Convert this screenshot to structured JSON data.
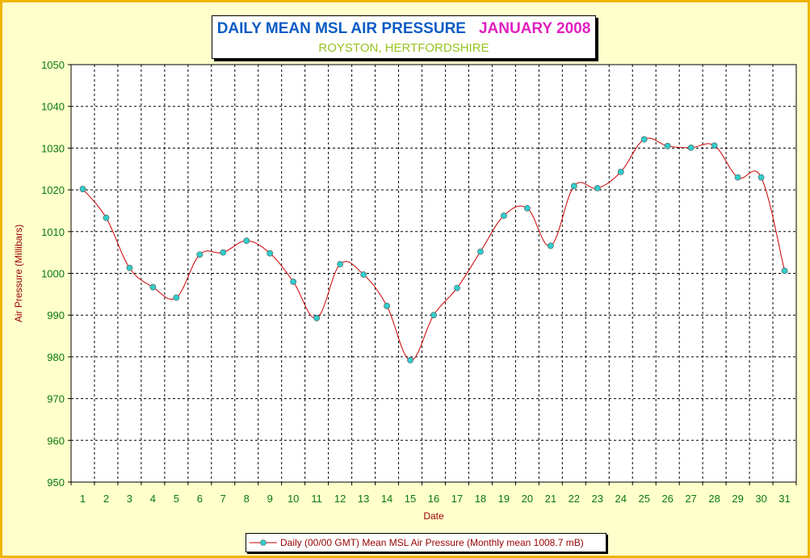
{
  "title": {
    "main": "DAILY MEAN MSL AIR PRESSURE",
    "month": "JANUARY 2008",
    "location": "ROYSTON, HERTFORDSHIRE"
  },
  "colors": {
    "background": "#ffffcc",
    "border": "#f0b400",
    "line": "#cc0000",
    "marker": "#33cccc",
    "tick_text": "#0a7a0a",
    "axis_title": "#990000"
  },
  "chart_data": {
    "type": "line",
    "title": "DAILY MEAN MSL AIR PRESSURE  JANUARY 2008",
    "subtitle": "ROYSTON, HERTFORDSHIRE",
    "xlabel": "Date",
    "ylabel": "Air Pressure (Millibars)",
    "ylim": [
      950,
      1050
    ],
    "yticks": [
      950,
      960,
      970,
      980,
      990,
      1000,
      1010,
      1020,
      1030,
      1040,
      1050
    ],
    "x": [
      1,
      2,
      3,
      4,
      5,
      6,
      7,
      8,
      9,
      10,
      11,
      12,
      13,
      14,
      15,
      16,
      17,
      18,
      19,
      20,
      21,
      22,
      23,
      24,
      25,
      26,
      27,
      28,
      29,
      30,
      31
    ],
    "grid": true,
    "legend_position": "bottom",
    "series": [
      {
        "name": "Daily (00/00 GMT) Mean MSL Air Pressure (Monthly mean 1008.7 mB)",
        "values": [
          1020.2,
          1013.3,
          1001.3,
          996.7,
          994.2,
          1004.5,
          1005.0,
          1007.8,
          1004.8,
          998.0,
          989.3,
          1002.2,
          999.7,
          992.2,
          979.2,
          990.0,
          996.5,
          1005.2,
          1013.8,
          1015.6,
          1006.6,
          1020.9,
          1020.4,
          1024.3,
          1032.1,
          1030.5,
          1030.1,
          1030.6,
          1023.0,
          1023.0,
          1000.6
        ]
      }
    ]
  }
}
